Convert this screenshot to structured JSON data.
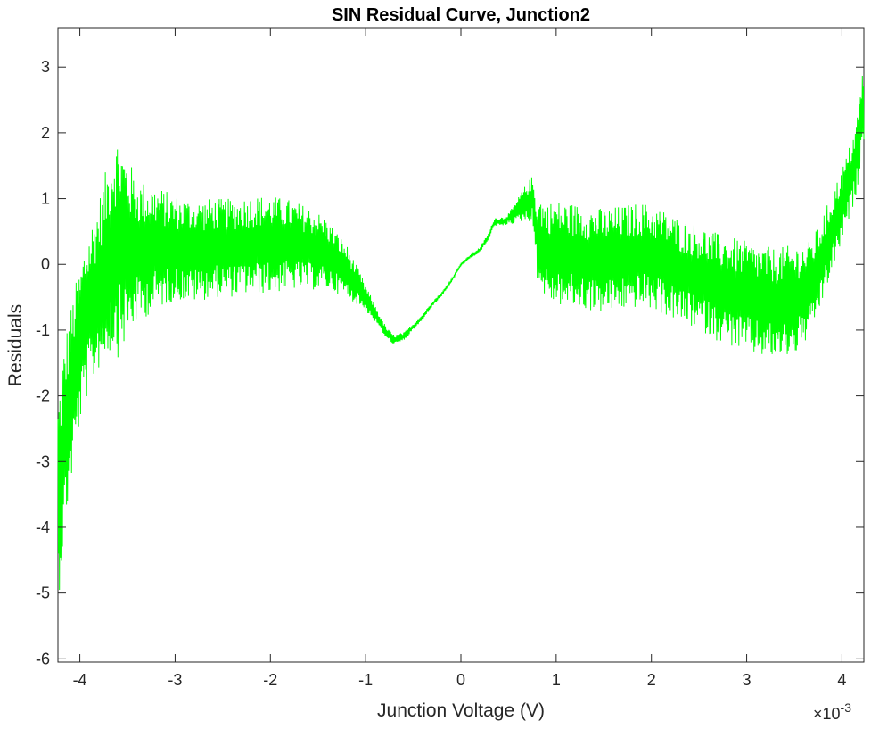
{
  "chart_data": {
    "type": "line",
    "title": "SIN Residual Curve, Junction2",
    "xlabel": "Junction Voltage (V)",
    "ylabel": "Residuals",
    "x_multiplier_label": "×10",
    "x_multiplier_exponent": "-3",
    "xlim": [
      -4.23,
      4.23
    ],
    "ylim": [
      -6.05,
      3.6
    ],
    "x_ticks": [
      -4,
      -3,
      -2,
      -1,
      0,
      1,
      2,
      3,
      4
    ],
    "x_tick_labels": [
      "-4",
      "-3",
      "-2",
      "-1",
      "0",
      "1",
      "2",
      "3",
      "4"
    ],
    "y_ticks": [
      -6,
      -5,
      -4,
      -3,
      -2,
      -1,
      0,
      1,
      2,
      3
    ],
    "y_tick_labels": [
      "-6",
      "-5",
      "-4",
      "-3",
      "-2",
      "-1",
      "0",
      "1",
      "2",
      "3"
    ],
    "grid": false,
    "legend": "none",
    "series": [
      {
        "color": "#00ff00",
        "trend": [
          [
            -4.23,
            -3.6
          ],
          [
            -4.15,
            -2.5
          ],
          [
            -4.05,
            -1.6
          ],
          [
            -3.95,
            -0.9
          ],
          [
            -3.85,
            -0.5
          ],
          [
            -3.75,
            -0.1
          ],
          [
            -3.65,
            0.3
          ],
          [
            -3.5,
            0.25
          ],
          [
            -3.4,
            0.2
          ],
          [
            -3.2,
            0.25
          ],
          [
            -3.0,
            0.25
          ],
          [
            -2.8,
            0.2
          ],
          [
            -2.6,
            0.25
          ],
          [
            -2.4,
            0.25
          ],
          [
            -2.2,
            0.3
          ],
          [
            -2.0,
            0.3
          ],
          [
            -1.8,
            0.3
          ],
          [
            -1.6,
            0.25
          ],
          [
            -1.4,
            0.15
          ],
          [
            -1.2,
            -0.1
          ],
          [
            -1.05,
            -0.4
          ],
          [
            -0.9,
            -0.75
          ],
          [
            -0.78,
            -1.05
          ],
          [
            -0.7,
            -1.15
          ],
          [
            -0.6,
            -1.1
          ],
          [
            -0.5,
            -0.95
          ],
          [
            -0.4,
            -0.8
          ],
          [
            -0.3,
            -0.6
          ],
          [
            -0.2,
            -0.45
          ],
          [
            -0.1,
            -0.25
          ],
          [
            0.0,
            0.0
          ],
          [
            0.1,
            0.12
          ],
          [
            0.2,
            0.22
          ],
          [
            0.3,
            0.45
          ],
          [
            0.35,
            0.65
          ],
          [
            0.45,
            0.65
          ],
          [
            0.55,
            0.75
          ],
          [
            0.65,
            0.9
          ],
          [
            0.75,
            1.0
          ],
          [
            0.8,
            0.4
          ],
          [
            0.9,
            0.2
          ],
          [
            1.1,
            0.15
          ],
          [
            1.3,
            0.1
          ],
          [
            1.5,
            0.05
          ],
          [
            1.7,
            0.1
          ],
          [
            1.9,
            0.15
          ],
          [
            2.1,
            0.05
          ],
          [
            2.3,
            -0.1
          ],
          [
            2.5,
            -0.2
          ],
          [
            2.7,
            -0.35
          ],
          [
            2.9,
            -0.45
          ],
          [
            3.1,
            -0.55
          ],
          [
            3.3,
            -0.6
          ],
          [
            3.5,
            -0.55
          ],
          [
            3.65,
            -0.4
          ],
          [
            3.75,
            -0.1
          ],
          [
            3.85,
            0.3
          ],
          [
            3.95,
            0.7
          ],
          [
            4.05,
            1.1
          ],
          [
            4.15,
            1.6
          ],
          [
            4.23,
            2.5
          ]
        ],
        "amplitude": [
          [
            -4.23,
            1.6
          ],
          [
            -4.0,
            1.2
          ],
          [
            -3.8,
            1.3
          ],
          [
            -3.6,
            1.7
          ],
          [
            -3.4,
            1.1
          ],
          [
            -3.0,
            0.8
          ],
          [
            -2.5,
            0.75
          ],
          [
            -2.0,
            0.75
          ],
          [
            -1.5,
            0.6
          ],
          [
            -1.2,
            0.4
          ],
          [
            -1.0,
            0.2
          ],
          [
            -0.85,
            0.1
          ],
          [
            -0.5,
            0.05
          ],
          [
            0.0,
            0.02
          ],
          [
            0.5,
            0.08
          ],
          [
            0.75,
            0.35
          ],
          [
            0.82,
            0.7
          ],
          [
            1.0,
            0.8
          ],
          [
            1.5,
            0.8
          ],
          [
            2.0,
            0.8
          ],
          [
            2.5,
            0.8
          ],
          [
            3.0,
            0.85
          ],
          [
            3.5,
            0.85
          ],
          [
            3.7,
            0.7
          ],
          [
            3.9,
            0.6
          ],
          [
            4.1,
            0.55
          ],
          [
            4.23,
            0.6
          ]
        ]
      }
    ]
  }
}
